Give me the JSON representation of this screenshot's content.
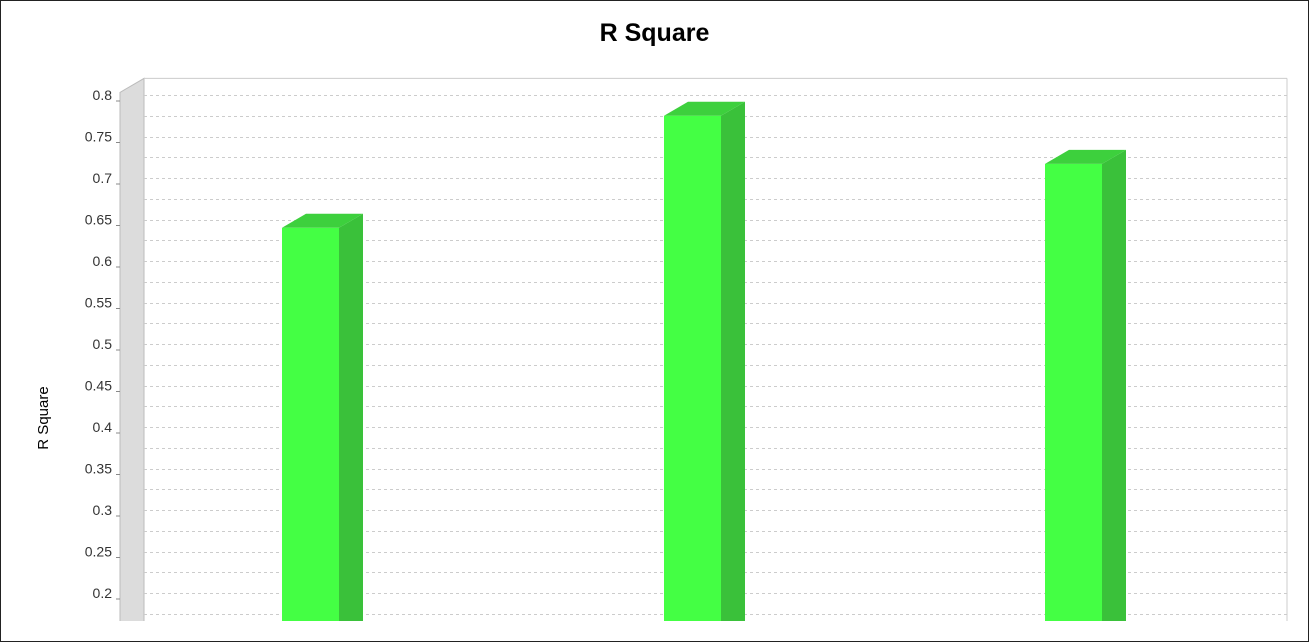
{
  "chart_data": {
    "type": "bar",
    "title": "R Square",
    "xlabel": "",
    "ylabel": "R Square",
    "categories": [
      "",
      "",
      ""
    ],
    "values": [
      0.64,
      0.775,
      0.717
    ],
    "ylim": [
      0.15,
      0.82
    ],
    "yticks": [
      {
        "value": 0.8,
        "label": "0.8"
      },
      {
        "value": 0.75,
        "label": "0.75"
      },
      {
        "value": 0.7,
        "label": "0.7"
      },
      {
        "value": 0.65,
        "label": "0.65"
      },
      {
        "value": 0.6,
        "label": "0.6"
      },
      {
        "value": 0.55,
        "label": "0.55"
      },
      {
        "value": 0.5,
        "label": "0.5"
      },
      {
        "value": 0.45,
        "label": "0.45"
      },
      {
        "value": 0.4,
        "label": "0.4"
      },
      {
        "value": 0.35,
        "label": "0.35"
      },
      {
        "value": 0.3,
        "label": "0.3"
      },
      {
        "value": 0.25,
        "label": "0.25"
      },
      {
        "value": 0.2,
        "label": "0.2"
      }
    ],
    "grid": true,
    "style": "3d",
    "colors": {
      "bar_front": "#44ff44",
      "bar_side": "#3ac13a",
      "bar_top": "#3dd03d",
      "grid": "#cccccc",
      "wall": "#dcdcdc"
    }
  }
}
